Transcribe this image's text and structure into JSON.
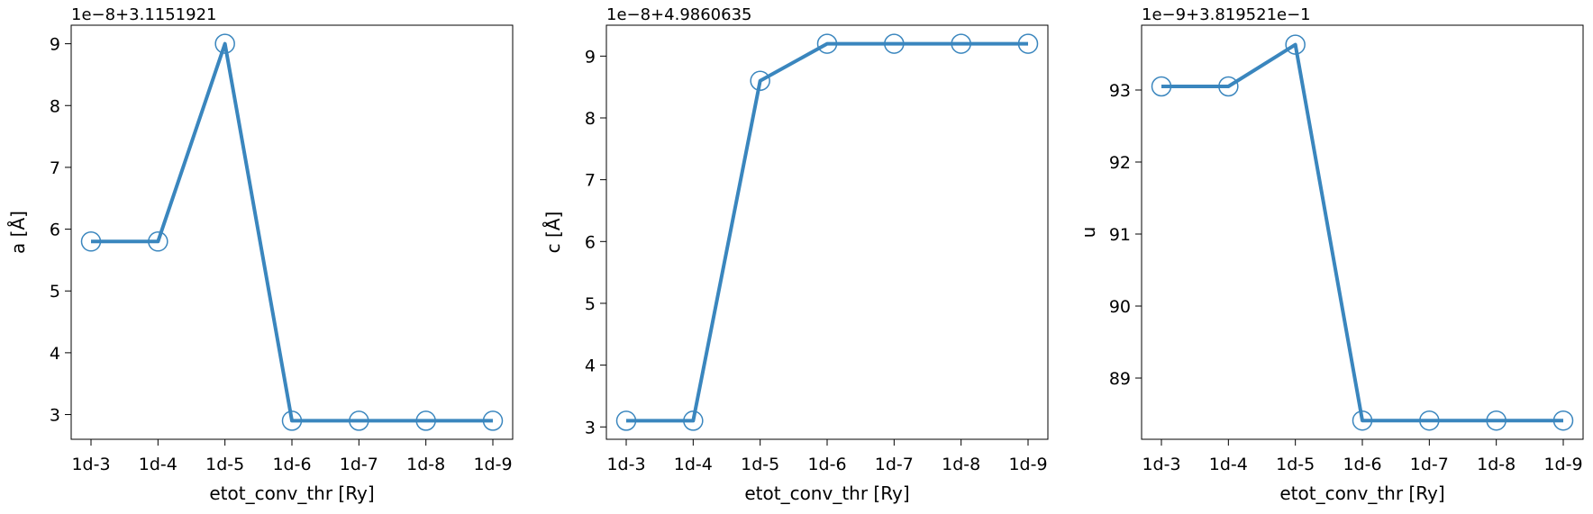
{
  "chart_data": [
    {
      "type": "line",
      "title": "",
      "xlabel": "etot_conv_thr [Ry]",
      "ylabel": "a [Å]",
      "offset_text": "1e−8+3.1151921",
      "categories": [
        "1d-3",
        "1d-4",
        "1d-5",
        "1d-6",
        "1d-7",
        "1d-8",
        "1d-9"
      ],
      "values": [
        5.8,
        5.8,
        9.0,
        2.9,
        2.9,
        2.9,
        2.9
      ],
      "yticks": [
        3,
        4,
        5,
        6,
        7,
        8,
        9
      ],
      "ylim": [
        2.6,
        9.3
      ],
      "grid": false,
      "marker": "open-circle",
      "color": "#3a86be"
    },
    {
      "type": "line",
      "title": "",
      "xlabel": "etot_conv_thr [Ry]",
      "ylabel": "c [Å]",
      "offset_text": "1e−8+4.9860635",
      "categories": [
        "1d-3",
        "1d-4",
        "1d-5",
        "1d-6",
        "1d-7",
        "1d-8",
        "1d-9"
      ],
      "values": [
        3.1,
        3.1,
        8.6,
        9.2,
        9.2,
        9.2,
        9.2
      ],
      "yticks": [
        3,
        4,
        5,
        6,
        7,
        8,
        9
      ],
      "ylim": [
        2.8,
        9.5
      ],
      "grid": false,
      "marker": "open-circle",
      "color": "#3a86be"
    },
    {
      "type": "line",
      "title": "",
      "xlabel": "etot_conv_thr [Ry]",
      "ylabel": "u",
      "offset_text": "1e−9+3.819521e−1",
      "categories": [
        "1d-3",
        "1d-4",
        "1d-5",
        "1d-6",
        "1d-7",
        "1d-8",
        "1d-9"
      ],
      "values": [
        93.05,
        93.05,
        93.63,
        88.41,
        88.41,
        88.41,
        88.41
      ],
      "yticks": [
        89,
        90,
        91,
        92,
        93
      ],
      "ylim": [
        88.15,
        93.9
      ],
      "grid": false,
      "marker": "open-circle",
      "color": "#3a86be"
    }
  ]
}
